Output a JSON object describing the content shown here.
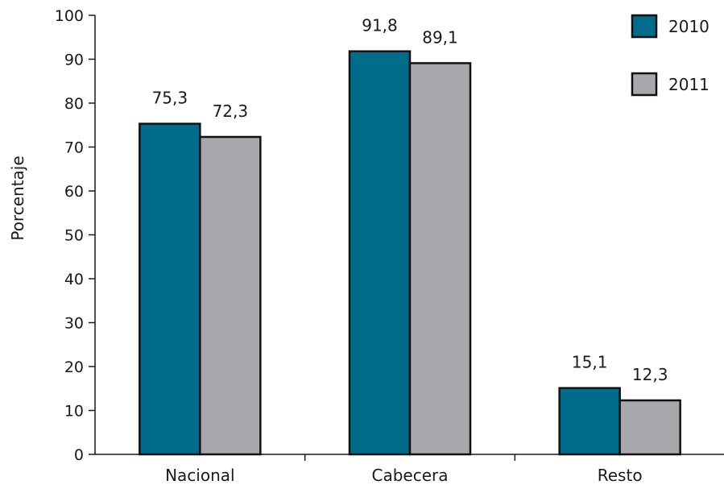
{
  "chart_data": {
    "type": "bar",
    "title": "",
    "xlabel": "",
    "ylabel": "Porcentaje",
    "ylim": [
      0,
      100
    ],
    "yticks": [
      0,
      10,
      20,
      30,
      40,
      50,
      60,
      70,
      80,
      90,
      100
    ],
    "categories": [
      "Nacional",
      "Cabecera",
      "Resto"
    ],
    "series": [
      {
        "name": "2010",
        "color": "#006c8c",
        "values": [
          75.3,
          91.8,
          15.1
        ],
        "labels": [
          "75,3",
          "91,8",
          "15,1"
        ]
      },
      {
        "name": "2011",
        "color": "#a6a8ab",
        "values": [
          72.3,
          89.1,
          12.3
        ],
        "labels": [
          "72,3",
          "89,1",
          "12,3"
        ]
      }
    ],
    "grid": false,
    "legend_position": "top-right"
  }
}
